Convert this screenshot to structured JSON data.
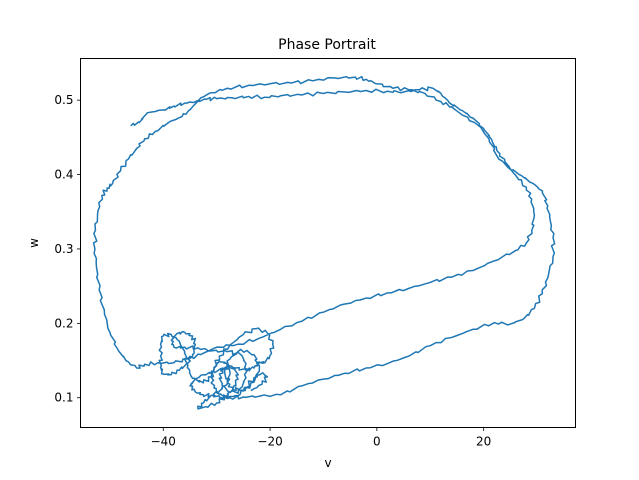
{
  "chart_data": {
    "type": "line",
    "title": "Phase Portrait",
    "xlabel": "v",
    "ylabel": "w",
    "xlim": [
      -55.5,
      37.2
    ],
    "ylim": [
      0.06,
      0.556
    ],
    "xticks": [
      -40,
      -20,
      0,
      20
    ],
    "yticks": [
      0.1,
      0.2,
      0.3,
      0.4,
      0.5
    ],
    "xtick_labels": [
      "−40",
      "−20",
      "0",
      "20"
    ],
    "ytick_labels": [
      "0.1",
      "0.2",
      "0.3",
      "0.4",
      "0.5"
    ],
    "grid": false,
    "legend": "none",
    "series": [
      {
        "color": "#1f77b4",
        "points": [
          [
            -46.0,
            0.466
          ],
          [
            -44.5,
            0.47
          ],
          [
            -43.0,
            0.483
          ],
          [
            -40.0,
            0.487
          ],
          [
            -38.0,
            0.492
          ],
          [
            -36.0,
            0.496
          ],
          [
            -34.0,
            0.498
          ],
          [
            -32.0,
            0.501
          ],
          [
            -30.0,
            0.502
          ],
          [
            -27.0,
            0.503
          ],
          [
            -24.0,
            0.505
          ],
          [
            -21.0,
            0.504
          ],
          [
            -18.0,
            0.506
          ],
          [
            -14.0,
            0.507
          ],
          [
            -10.0,
            0.509
          ],
          [
            -6.0,
            0.511
          ],
          [
            -2.0,
            0.513
          ],
          [
            2.0,
            0.512
          ],
          [
            5.0,
            0.511
          ],
          [
            8.0,
            0.514
          ],
          [
            10.5,
            0.516
          ],
          [
            12.0,
            0.509
          ],
          [
            13.5,
            0.497
          ],
          [
            16.0,
            0.486
          ],
          [
            18.0,
            0.476
          ],
          [
            20.0,
            0.462
          ],
          [
            21.5,
            0.447
          ],
          [
            22.5,
            0.432
          ],
          [
            24.0,
            0.417
          ],
          [
            26.0,
            0.399
          ],
          [
            28.0,
            0.383
          ],
          [
            29.0,
            0.367
          ],
          [
            29.5,
            0.345
          ],
          [
            29.0,
            0.325
          ],
          [
            28.0,
            0.308
          ],
          [
            26.0,
            0.298
          ],
          [
            22.0,
            0.284
          ],
          [
            18.0,
            0.271
          ],
          [
            14.0,
            0.262
          ],
          [
            10.0,
            0.255
          ],
          [
            6.0,
            0.247
          ],
          [
            2.0,
            0.241
          ],
          [
            -2.0,
            0.234
          ],
          [
            -6.0,
            0.226
          ],
          [
            -10.0,
            0.215
          ],
          [
            -14.0,
            0.203
          ],
          [
            -18.0,
            0.192
          ],
          [
            -22.0,
            0.18
          ],
          [
            -26.0,
            0.172
          ],
          [
            -30.0,
            0.168
          ],
          [
            -33.0,
            0.158
          ],
          [
            -35.5,
            0.152
          ],
          [
            -38.0,
            0.147
          ],
          [
            -41.0,
            0.147
          ],
          [
            -43.5,
            0.145
          ],
          [
            -45.0,
            0.14
          ],
          [
            -47.0,
            0.15
          ],
          [
            -48.5,
            0.165
          ],
          [
            -50.0,
            0.188
          ],
          [
            -51.0,
            0.212
          ],
          [
            -52.0,
            0.245
          ],
          [
            -52.5,
            0.275
          ],
          [
            -52.8,
            0.3
          ],
          [
            -52.7,
            0.325
          ],
          [
            -52.2,
            0.352
          ],
          [
            -51.5,
            0.372
          ],
          [
            -50.5,
            0.382
          ],
          [
            -49.5,
            0.388
          ],
          [
            -48.0,
            0.405
          ],
          [
            -46.5,
            0.421
          ],
          [
            -45.0,
            0.435
          ],
          [
            -43.5,
            0.448
          ],
          [
            -41.5,
            0.458
          ],
          [
            -39.0,
            0.47
          ],
          [
            -36.5,
            0.478
          ],
          [
            -35.0,
            0.487
          ],
          [
            -33.0,
            0.503
          ],
          [
            -31.0,
            0.51
          ],
          [
            -28.0,
            0.516
          ],
          [
            -24.0,
            0.52
          ],
          [
            -20.0,
            0.522
          ],
          [
            -16.0,
            0.523
          ],
          [
            -12.0,
            0.526
          ],
          [
            -8.0,
            0.53
          ],
          [
            -4.0,
            0.531
          ],
          [
            -2.0,
            0.528
          ],
          [
            0.0,
            0.522
          ],
          [
            3.0,
            0.516
          ],
          [
            6.0,
            0.514
          ],
          [
            9.0,
            0.509
          ],
          [
            12.0,
            0.498
          ],
          [
            14.0,
            0.491
          ],
          [
            16.0,
            0.48
          ],
          [
            19.0,
            0.466
          ],
          [
            21.0,
            0.448
          ],
          [
            22.5,
            0.425
          ],
          [
            24.5,
            0.41
          ],
          [
            27.0,
            0.399
          ],
          [
            29.0,
            0.389
          ],
          [
            31.0,
            0.378
          ],
          [
            32.0,
            0.358
          ],
          [
            32.5,
            0.337
          ],
          [
            33.0,
            0.315
          ],
          [
            33.0,
            0.29
          ],
          [
            32.0,
            0.261
          ],
          [
            31.0,
            0.24
          ],
          [
            29.5,
            0.22
          ],
          [
            27.5,
            0.206
          ],
          [
            25.0,
            0.199
          ],
          [
            22.0,
            0.201
          ],
          [
            18.0,
            0.192
          ],
          [
            14.0,
            0.181
          ],
          [
            10.0,
            0.17
          ],
          [
            6.0,
            0.156
          ],
          [
            2.0,
            0.146
          ],
          [
            -2.0,
            0.14
          ],
          [
            -6.0,
            0.133
          ],
          [
            -10.0,
            0.125
          ],
          [
            -14.0,
            0.116
          ],
          [
            -18.0,
            0.104
          ],
          [
            -22.0,
            0.102
          ],
          [
            -25.0,
            0.101
          ],
          [
            -27.5,
            0.1
          ],
          [
            -29.5,
            0.101
          ],
          [
            -31.0,
            0.103
          ],
          [
            -32.5,
            0.093
          ],
          [
            -33.5,
            0.085
          ],
          [
            -32.0,
            0.088
          ],
          [
            -30.0,
            0.093
          ],
          [
            -28.5,
            0.101
          ],
          [
            -27.0,
            0.111
          ],
          [
            -26.0,
            0.125
          ],
          [
            -26.5,
            0.14
          ],
          [
            -28.0,
            0.144
          ],
          [
            -29.5,
            0.132
          ],
          [
            -29.0,
            0.117
          ],
          [
            -27.5,
            0.107
          ],
          [
            -25.0,
            0.109
          ],
          [
            -23.0,
            0.121
          ],
          [
            -22.0,
            0.14
          ],
          [
            -23.0,
            0.158
          ],
          [
            -25.5,
            0.165
          ],
          [
            -27.5,
            0.152
          ],
          [
            -28.5,
            0.135
          ],
          [
            -28.0,
            0.12
          ],
          [
            -27.0,
            0.111
          ],
          [
            -25.5,
            0.113
          ],
          [
            -24.5,
            0.127
          ],
          [
            -24.5,
            0.146
          ],
          [
            -25.5,
            0.158
          ],
          [
            -28.0,
            0.162
          ],
          [
            -31.0,
            0.163
          ],
          [
            -33.5,
            0.167
          ],
          [
            -36.0,
            0.168
          ],
          [
            -38.0,
            0.168
          ],
          [
            -38.5,
            0.177
          ],
          [
            -37.5,
            0.186
          ],
          [
            -36.0,
            0.188
          ],
          [
            -34.5,
            0.183
          ],
          [
            -34.0,
            0.172
          ],
          [
            -34.5,
            0.158
          ],
          [
            -35.5,
            0.146
          ],
          [
            -37.0,
            0.137
          ],
          [
            -38.5,
            0.131
          ],
          [
            -40.0,
            0.132
          ],
          [
            -40.5,
            0.141
          ],
          [
            -40.5,
            0.156
          ],
          [
            -40.5,
            0.172
          ],
          [
            -40.0,
            0.183
          ],
          [
            -38.5,
            0.185
          ],
          [
            -37.0,
            0.176
          ],
          [
            -36.0,
            0.16
          ],
          [
            -35.5,
            0.141
          ],
          [
            -34.5,
            0.126
          ],
          [
            -32.5,
            0.12
          ],
          [
            -31.0,
            0.128
          ],
          [
            -30.5,
            0.141
          ],
          [
            -29.5,
            0.156
          ],
          [
            -27.5,
            0.171
          ],
          [
            -25.0,
            0.185
          ],
          [
            -22.5,
            0.193
          ],
          [
            -20.5,
            0.187
          ],
          [
            -19.5,
            0.172
          ],
          [
            -20.0,
            0.157
          ],
          [
            -21.0,
            0.147
          ],
          [
            -22.0,
            0.148
          ],
          [
            -23.0,
            0.14
          ],
          [
            -24.5,
            0.137
          ],
          [
            -26.5,
            0.14
          ],
          [
            -28.5,
            0.139
          ],
          [
            -30.5,
            0.135
          ],
          [
            -32.5,
            0.131
          ],
          [
            -34.0,
            0.125
          ],
          [
            -35.0,
            0.116
          ],
          [
            -34.0,
            0.108
          ],
          [
            -32.5,
            0.104
          ],
          [
            -31.0,
            0.103
          ],
          [
            -29.5,
            0.109
          ],
          [
            -28.0,
            0.12
          ],
          [
            -27.5,
            0.133
          ],
          [
            -28.0,
            0.146
          ],
          [
            -29.5,
            0.149
          ],
          [
            -30.5,
            0.141
          ],
          [
            -31.0,
            0.127
          ],
          [
            -30.5,
            0.113
          ],
          [
            -29.5,
            0.104
          ],
          [
            -28.0,
            0.101
          ],
          [
            -26.0,
            0.103
          ],
          [
            -24.5,
            0.114
          ],
          [
            -23.0,
            0.127
          ],
          [
            -21.5,
            0.133
          ],
          [
            -20.5,
            0.128
          ],
          [
            -21.5,
            0.118
          ],
          [
            -23.5,
            0.11
          ]
        ]
      }
    ]
  }
}
